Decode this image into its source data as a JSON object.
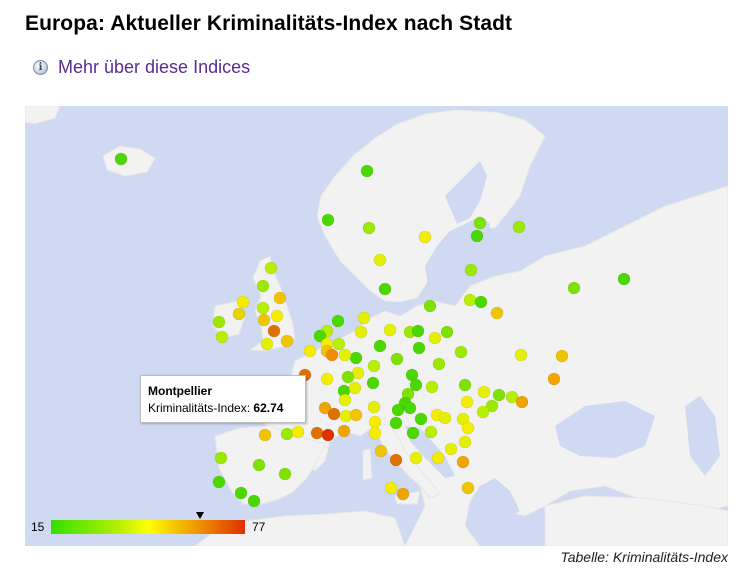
{
  "header": {
    "title": "Europa: Aktueller Kriminalitäts-Index nach Stadt",
    "info_link": "Mehr über diese Indices",
    "info_icon": "info-icon"
  },
  "tooltip": {
    "city": "Montpellier",
    "label": "Kriminalitäts-Index:",
    "value": "62.74"
  },
  "legend": {
    "min": "15",
    "max": "77",
    "marker_value": 62.74,
    "colors": [
      "#32e000",
      "#b6f000",
      "#ffff00",
      "#f0a400",
      "#e03000"
    ]
  },
  "caption": "Tabelle: Kriminalitäts-Index",
  "colors": {
    "sea": "#cfd9f2",
    "land": "#f2f2f2",
    "title_link": "#5a2d91"
  }
}
